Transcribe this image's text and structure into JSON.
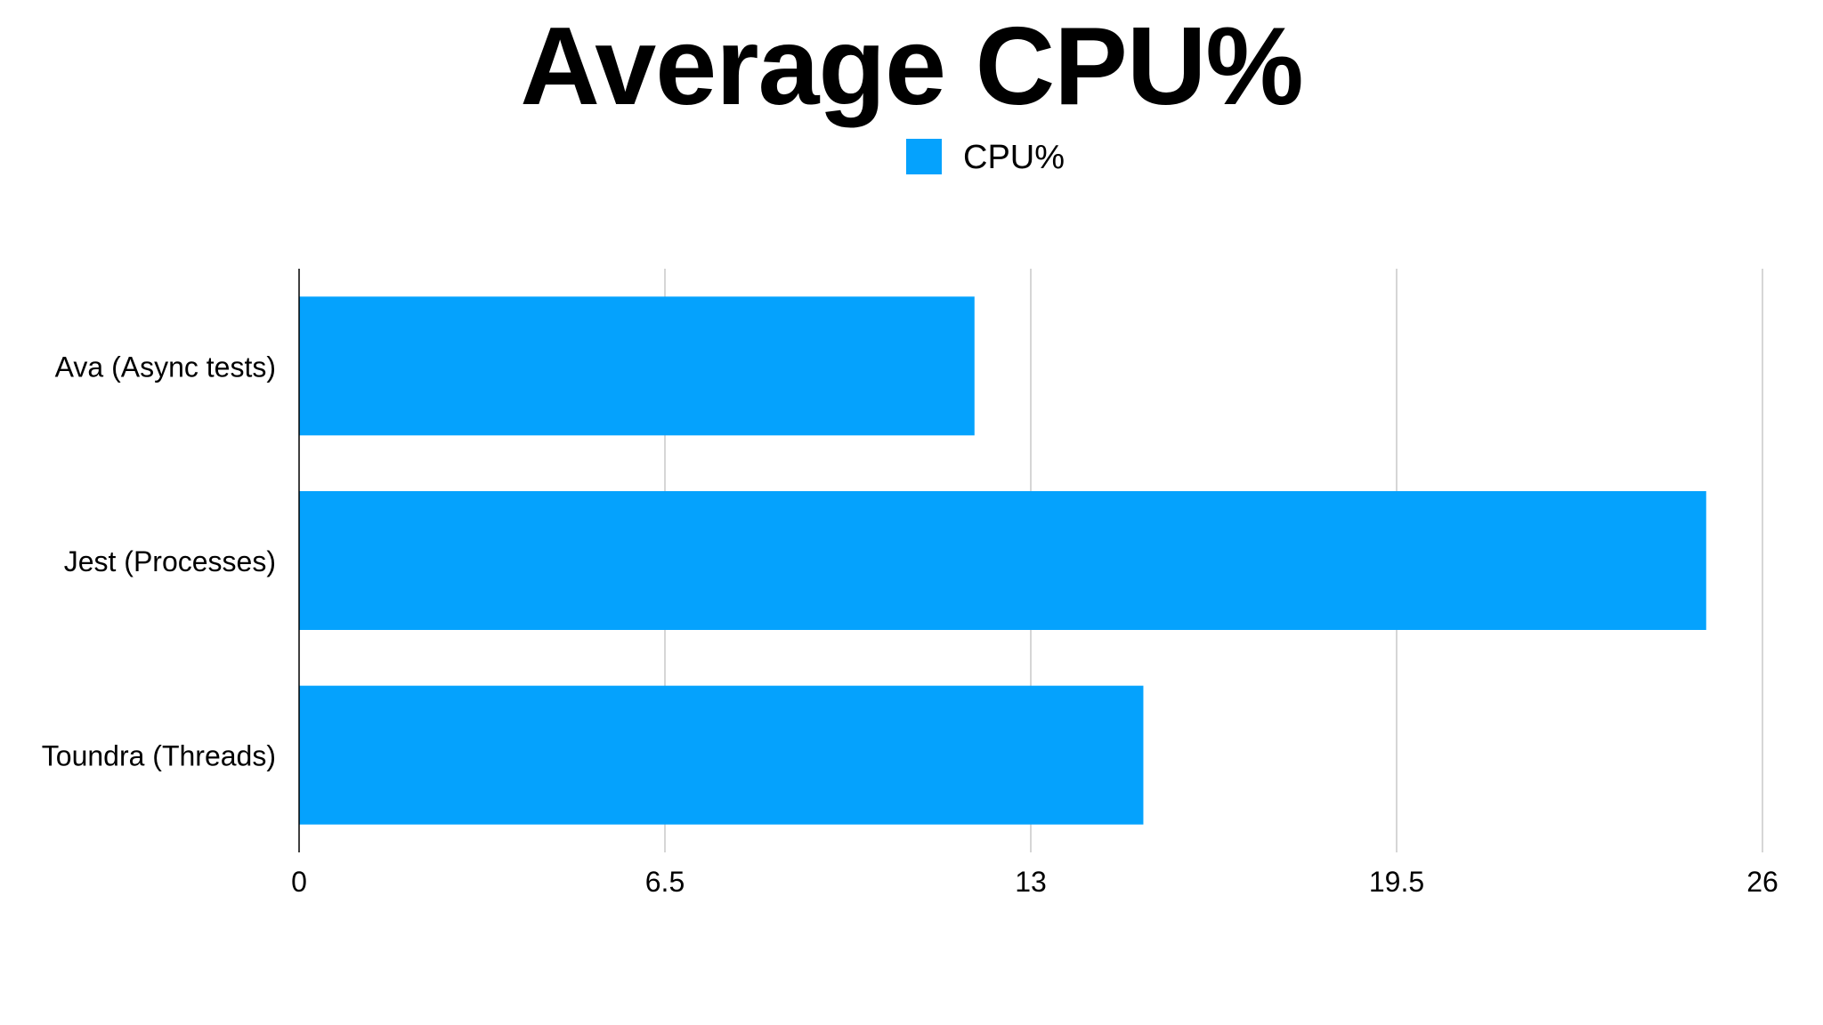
{
  "chart_data": {
    "type": "bar",
    "orientation": "horizontal",
    "title": "Average CPU%",
    "categories": [
      "Ava (Async tests)",
      "Jest (Processes)",
      "Toundra (Threads)"
    ],
    "series": [
      {
        "name": "CPU%",
        "color": "#05A2FD",
        "values": [
          12.0,
          25.0,
          15.0
        ]
      }
    ],
    "xlabel": "",
    "ylabel": "",
    "xlim": [
      0,
      26
    ],
    "xticks": [
      "0",
      "6.5",
      "13",
      "19.5",
      "26"
    ],
    "grid": true,
    "legend_position": "top-center"
  }
}
